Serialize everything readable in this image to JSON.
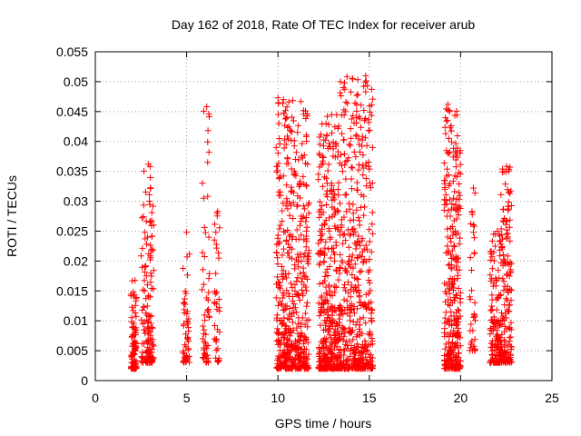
{
  "chart_data": {
    "type": "scatter",
    "title": "Day 162 of 2018, Rate Of TEC Index for receiver arub",
    "xlabel": "GPS time / hours",
    "ylabel": "ROTI / TECUs",
    "xlim": [
      0,
      25
    ],
    "ylim": [
      0,
      0.055
    ],
    "x_ticks": [
      0,
      5,
      10,
      15,
      20,
      25
    ],
    "y_ticks": [
      0,
      0.005,
      0.01,
      0.015,
      0.02,
      0.025,
      0.03,
      0.035,
      0.04,
      0.045,
      0.05,
      0.055
    ],
    "x_tick_labels": [
      "0",
      "5",
      "10",
      "15",
      "20",
      "25"
    ],
    "y_tick_labels": [
      "0",
      "0.005",
      "0.01",
      "0.015",
      "0.02",
      "0.025",
      "0.03",
      "0.035",
      "0.04",
      "0.045",
      "0.05",
      "0.055"
    ],
    "grid": true,
    "marker": "+",
    "series": [
      {
        "name": "ROTI",
        "color": "#ff0000",
        "clusters": [
          {
            "x": [
              1.95,
              2.25
            ],
            "y": [
              0.002,
              0.017
            ],
            "n": 90
          },
          {
            "x": [
              2.5,
              3.2
            ],
            "y": [
              0.003,
              0.036
            ],
            "n": 150
          },
          {
            "x": [
              4.8,
              5.15
            ],
            "y": [
              0.003,
              0.025
            ],
            "n": 50
          },
          {
            "x": [
              5.85,
              6.25
            ],
            "y": [
              0.003,
              0.046
            ],
            "n": 55
          },
          {
            "x": [
              6.5,
              6.8
            ],
            "y": [
              0.003,
              0.028
            ],
            "n": 35
          },
          {
            "x": [
              9.9,
              11.7
            ],
            "y": [
              0.002,
              0.047
            ],
            "n": 500
          },
          {
            "x": [
              12.2,
              13.4
            ],
            "y": [
              0.002,
              0.045
            ],
            "n": 380
          },
          {
            "x": [
              13.4,
              15.2
            ],
            "y": [
              0.002,
              0.051
            ],
            "n": 450
          },
          {
            "x": [
              19.1,
              20.0
            ],
            "y": [
              0.002,
              0.046
            ],
            "n": 320
          },
          {
            "x": [
              20.5,
              20.8
            ],
            "y": [
              0.005,
              0.032
            ],
            "n": 35
          },
          {
            "x": [
              21.6,
              22.2
            ],
            "y": [
              0.003,
              0.025
            ],
            "n": 140
          },
          {
            "x": [
              22.2,
              22.8
            ],
            "y": [
              0.003,
              0.036
            ],
            "n": 160
          }
        ],
        "points": [
          [
            6.1,
            0.0458
          ],
          [
            6.15,
            0.0399
          ],
          [
            6.15,
            0.0308
          ],
          [
            6.7,
            0.0283
          ],
          [
            6.6,
            0.0248
          ],
          [
            10.0,
            0.0473
          ],
          [
            10.3,
            0.047
          ],
          [
            10.05,
            0.043
          ],
          [
            10.6,
            0.0425
          ],
          [
            10.45,
            0.0395
          ],
          [
            14.8,
            0.051
          ],
          [
            14.8,
            0.0483
          ],
          [
            14.7,
            0.0452
          ],
          [
            14.5,
            0.0438
          ],
          [
            13.7,
            0.045
          ],
          [
            13.5,
            0.0413
          ],
          [
            14.0,
            0.0405
          ],
          [
            13.9,
            0.0395
          ],
          [
            14.45,
            0.0395
          ],
          [
            12.7,
            0.0442
          ],
          [
            19.3,
            0.0462
          ],
          [
            19.4,
            0.045
          ],
          [
            19.35,
            0.0405
          ],
          [
            20.7,
            0.0322
          ],
          [
            20.55,
            0.0262
          ],
          [
            20.7,
            0.0248
          ],
          [
            22.7,
            0.0357
          ],
          [
            2.9,
            0.0362
          ],
          [
            3.0,
            0.0358
          ],
          [
            5.0,
            0.0248
          ],
          [
            21.9,
            0.0245
          ],
          [
            22.6,
            0.0285
          ]
        ]
      }
    ]
  }
}
